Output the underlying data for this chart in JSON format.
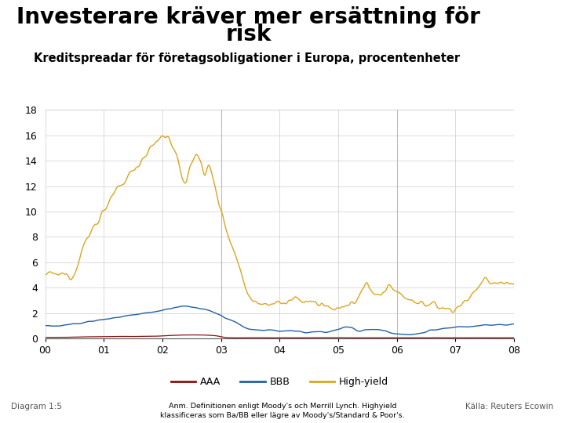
{
  "title_line1": "Investerare kräver mer ersättning för",
  "title_line2": "risk",
  "subtitle": "Kreditspreadar för företagsobligationer i Europa, procentenheter",
  "diagram_label": "Diagram 1:5",
  "source_text": "Källa: Reuters Ecowin",
  "note_text": "Anm. Definitionen enligt Moody's och Merrill Lynch. Highyield\nklassificeras som Ba/BB eller lägre av Moody's/Standard & Poor's.",
  "title_fontsize": 20,
  "subtitle_fontsize": 10.5,
  "background_color": "#ffffff",
  "plot_bg_color": "#ffffff",
  "grid_color": "#cccccc",
  "colors": {
    "AAA": "#8B1010",
    "BBB": "#2060a8",
    "High-yield": "#DAA520"
  },
  "ylim": [
    0,
    18
  ],
  "yticks": [
    0,
    2,
    4,
    6,
    8,
    10,
    12,
    14,
    16,
    18
  ],
  "xtick_labels": [
    "00",
    "01",
    "02",
    "03",
    "04",
    "05",
    "06",
    "07",
    "08"
  ],
  "legend_labels": [
    "AAA",
    "BBB",
    "High-yield"
  ],
  "footer_bar_color": "#1e3a8a",
  "logo_color": "#1e3a8a"
}
